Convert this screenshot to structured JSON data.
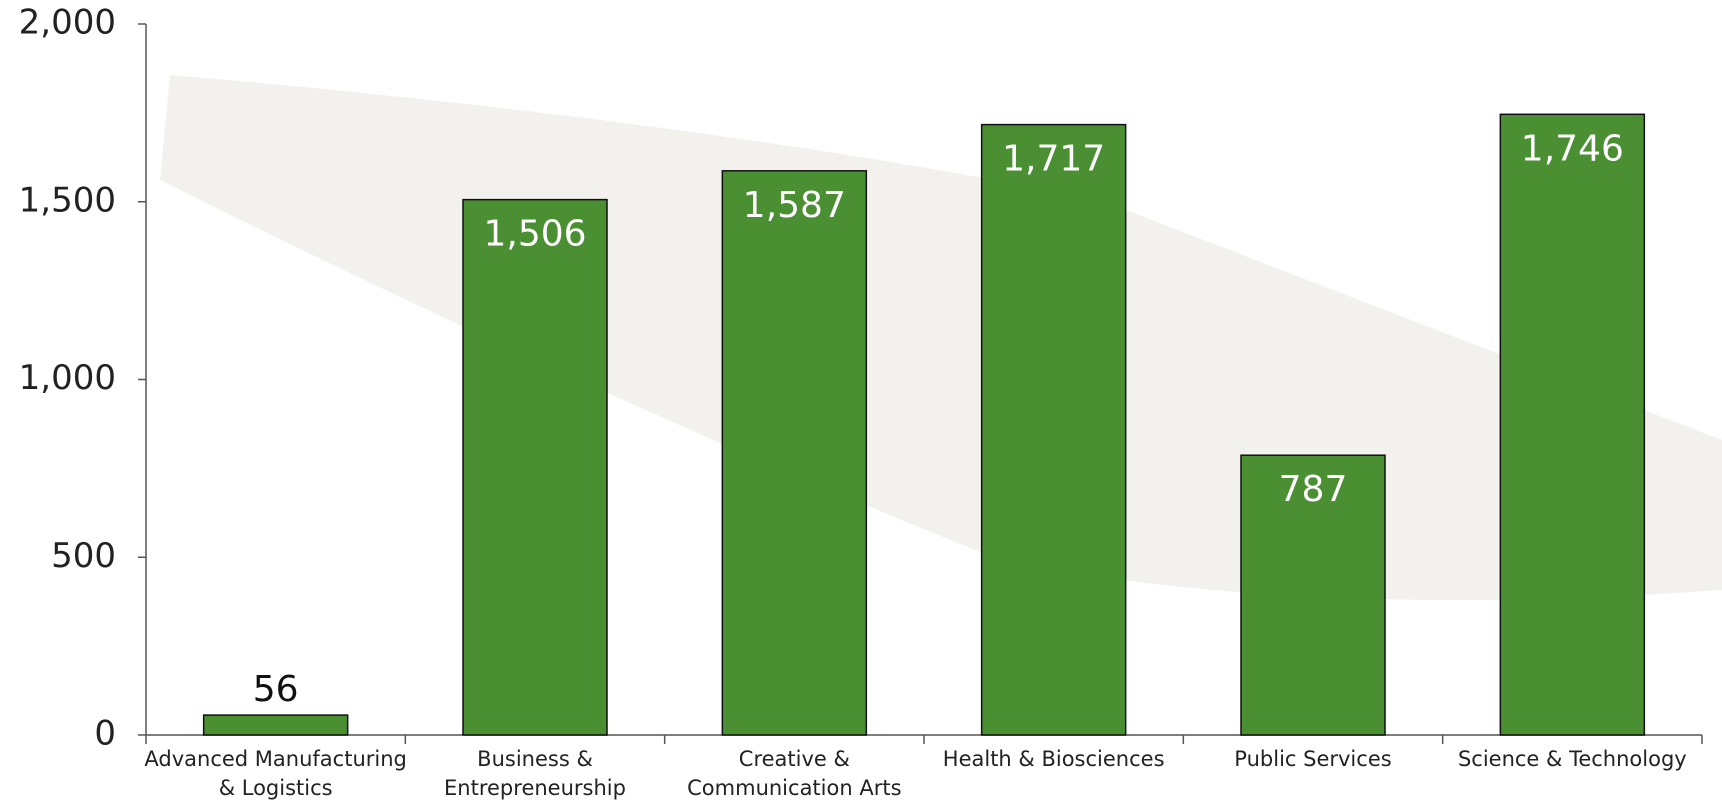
{
  "chart_data": {
    "type": "bar",
    "categories": [
      "Advanced Manufacturing\n& Logistics",
      "Business &\nEntrepreneurship",
      "Creative &\nCommunication Arts",
      "Health & Biosciences",
      "Public Services",
      "Science & Technology"
    ],
    "values": [
      56,
      1506,
      1587,
      1717,
      787,
      1746
    ],
    "value_labels": [
      "56",
      "1,506",
      "1,587",
      "1,717",
      "787",
      "1,746"
    ],
    "color": "#4a8f32",
    "ylim": [
      0,
      2000
    ],
    "yticks": [
      0,
      {
        "value": 500,
        "label": "500"
      },
      {
        "value": 1000,
        "label": "1,000"
      },
      {
        "value": 1500,
        "label": "1,500"
      },
      {
        "value": 2000,
        "label": "2,000"
      }
    ],
    "grid": false
  }
}
